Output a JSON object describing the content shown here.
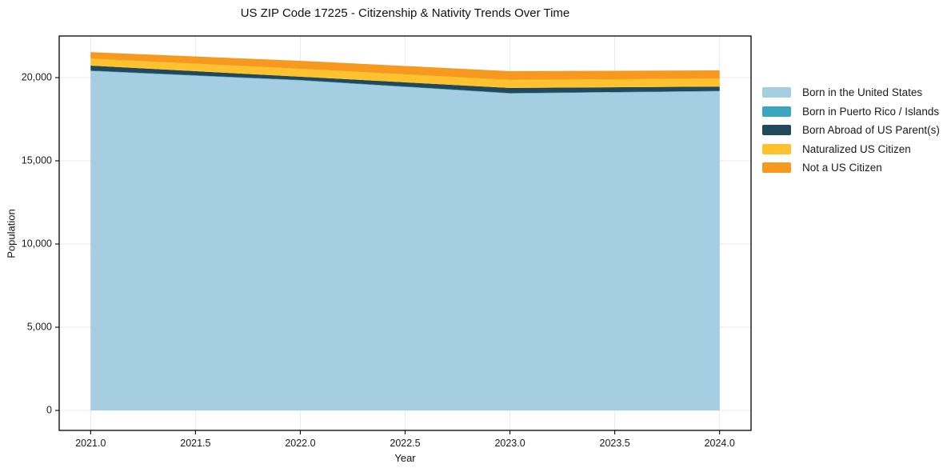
{
  "title": "US ZIP Code 17225 - Citizenship & Nativity Trends Over Time",
  "colors": {
    "background": "#ffffff",
    "grid": "#e9e9e9",
    "axis": "#000000",
    "tick_text": "#1a1a1a"
  },
  "chart_data": {
    "type": "area",
    "stacked": true,
    "title": "US ZIP Code 17225 - Citizenship & Nativity Trends Over Time",
    "xlabel": "Year",
    "ylabel": "Population",
    "x": [
      2021,
      2022,
      2023,
      2024
    ],
    "series": [
      {
        "name": "Born in the United States",
        "color": "#a5cee3",
        "values": [
          20390,
          19825,
          19040,
          19170
        ]
      },
      {
        "name": "Born in Puerto Rico / Islands",
        "color": "#3aa7c0",
        "values": [
          30,
          30,
          30,
          30
        ]
      },
      {
        "name": "Born Abroad of US Parent(s)",
        "color": "#22485c",
        "values": [
          300,
          200,
          310,
          260
        ]
      },
      {
        "name": "Naturalized US Citizen",
        "color": "#fdc22d",
        "values": [
          420,
          475,
          480,
          480
        ]
      },
      {
        "name": "Not a US Citizen",
        "color": "#f7981f",
        "values": [
          390,
          480,
          530,
          495
        ]
      }
    ],
    "stack_totals": [
      21530,
      21010,
      20390,
      20435
    ],
    "xlim": [
      2020.85,
      2024.15
    ],
    "ylim": [
      -1200,
      22500
    ],
    "xticks": {
      "values": [
        2021.0,
        2021.5,
        2022.0,
        2022.5,
        2023.0,
        2023.5,
        2024.0
      ],
      "labels": [
        "2021.0",
        "2021.5",
        "2022.0",
        "2022.5",
        "2023.0",
        "2023.5",
        "2024.0"
      ]
    },
    "yticks": {
      "values": [
        0,
        5000,
        10000,
        15000,
        20000
      ],
      "labels": [
        "0",
        "5,000",
        "10,000",
        "15,000",
        "20,000"
      ]
    },
    "grid": true,
    "legend_position": "right"
  }
}
